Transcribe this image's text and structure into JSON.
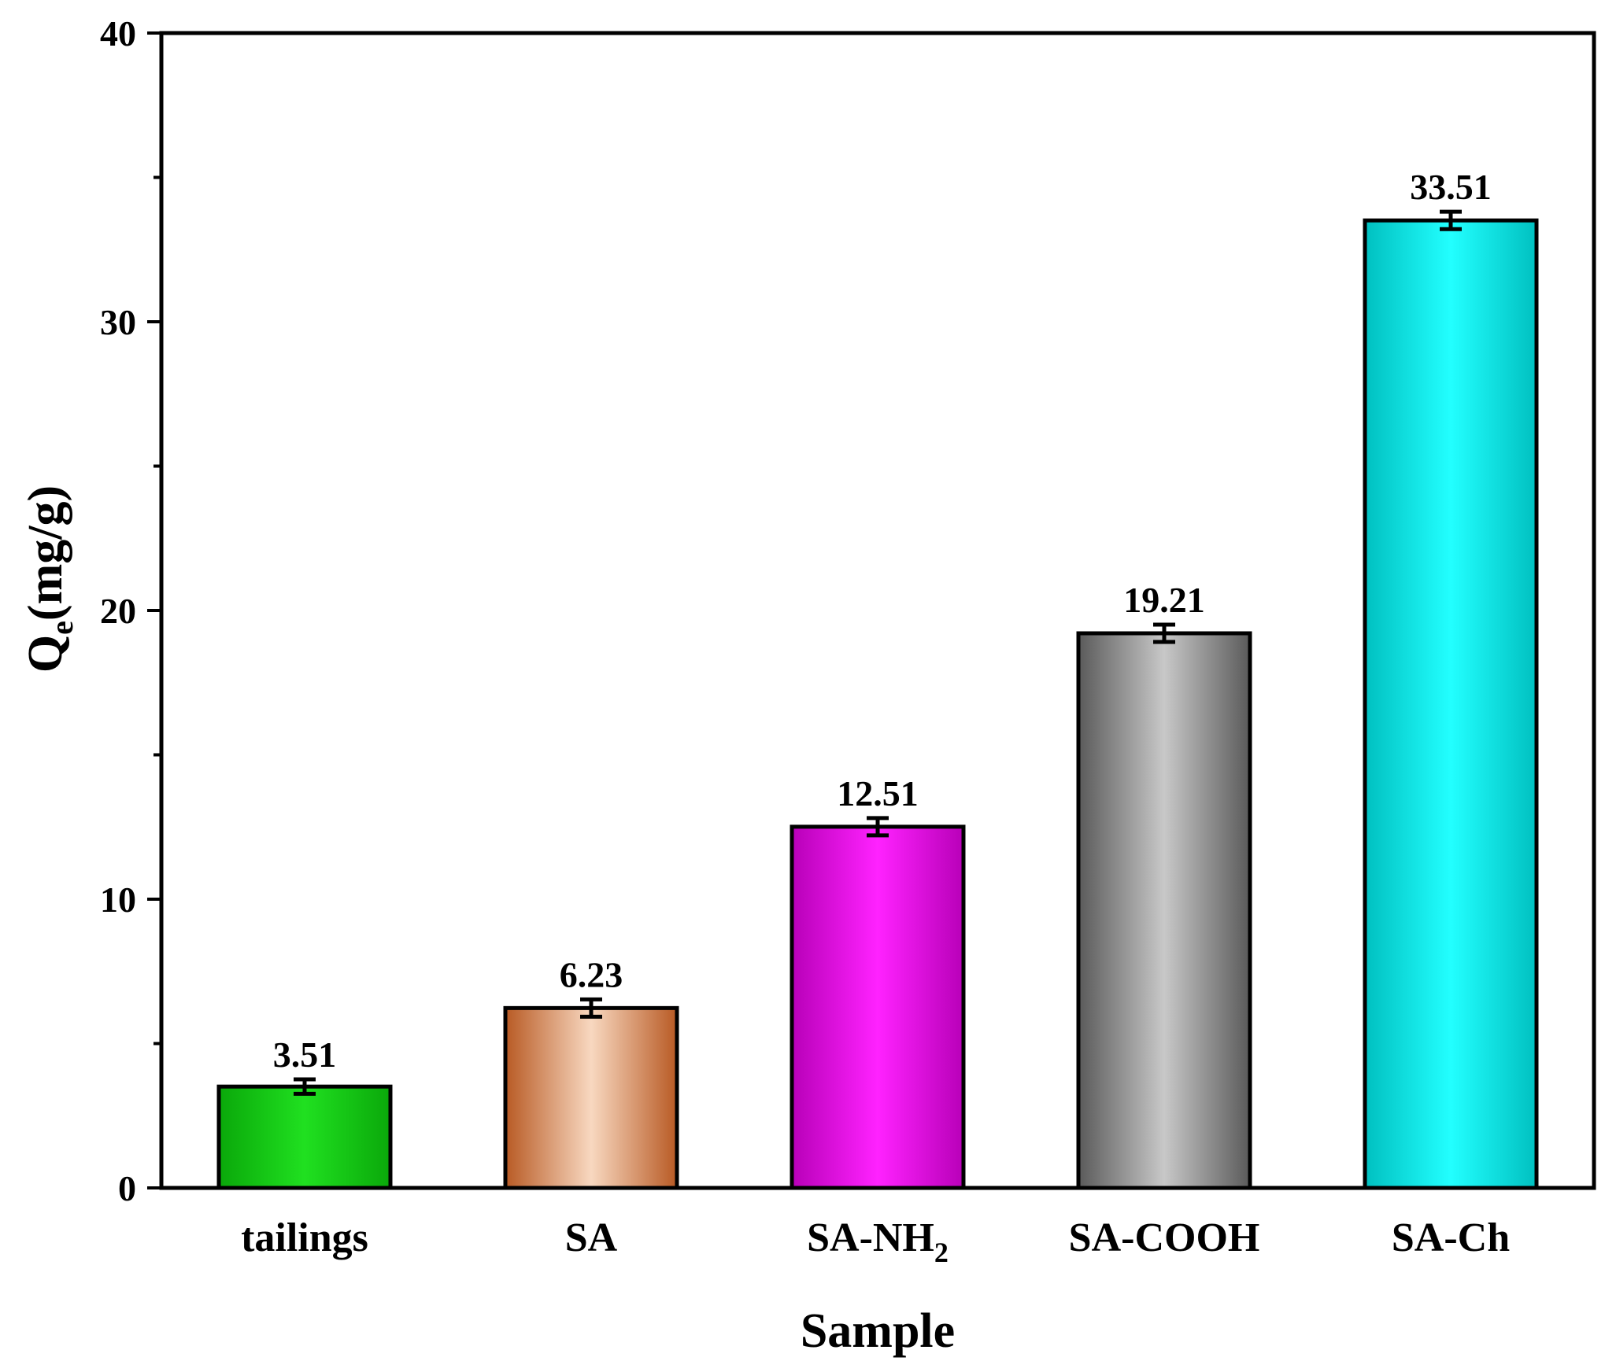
{
  "chart_data": {
    "type": "bar",
    "title": "",
    "xlabel": "Sample",
    "ylabel_main": "Q",
    "ylabel_sub": "e",
    "ylabel_rest": "(mg/g)",
    "ylim": [
      0,
      40
    ],
    "yticks": [
      0,
      10,
      20,
      30,
      40
    ],
    "grid": false,
    "categories": [
      {
        "label": "tailings",
        "sub": ""
      },
      {
        "label": "SA",
        "sub": ""
      },
      {
        "label": "SA-NH",
        "sub": "2"
      },
      {
        "label": "SA-COOH",
        "sub": ""
      },
      {
        "label": "SA-Ch",
        "sub": ""
      }
    ],
    "values": [
      3.51,
      6.23,
      12.51,
      19.21,
      33.51
    ],
    "value_labels": [
      "3.51",
      "6.23",
      "12.51",
      "19.21",
      "33.51"
    ],
    "errors": [
      0.25,
      0.3,
      0.3,
      0.3,
      0.3
    ],
    "colors": [
      {
        "edge": "#0aa80a",
        "center": "#20e020"
      },
      {
        "edge": "#b85a24",
        "center": "#f8d8c0"
      },
      {
        "edge": "#b800b8",
        "center": "#ff22ff"
      },
      {
        "edge": "#5a5a5a",
        "center": "#c8c8c8"
      },
      {
        "edge": "#00c0c0",
        "center": "#22ffff"
      }
    ]
  }
}
